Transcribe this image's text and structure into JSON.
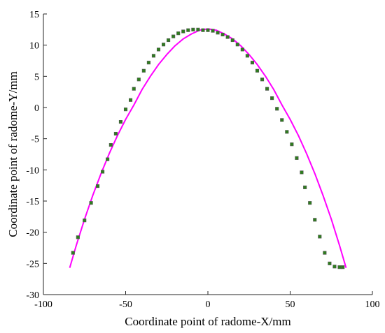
{
  "chart_data": {
    "type": "line",
    "xlabel": "Coordinate point of radome-X/mm",
    "ylabel": "Coordinate point of radome-Y/mm",
    "xlim": [
      -100,
      100
    ],
    "ylim": [
      -30,
      15
    ],
    "xticks": [
      -100,
      -50,
      0,
      50,
      100
    ],
    "yticks": [
      15,
      10,
      5,
      0,
      -5,
      -10,
      -15,
      -20,
      -25,
      -30
    ],
    "grid": false,
    "series": [
      {
        "kind": "curve",
        "color": "#ff00ff",
        "x": [
          -84,
          -80,
          -75,
          -70,
          -65,
          -60,
          -55,
          -50,
          -45,
          -40,
          -35,
          -30,
          -25,
          -20,
          -15,
          -10,
          -5,
          0,
          5,
          10,
          15,
          20,
          25,
          30,
          35,
          40,
          45,
          50,
          55,
          60,
          65,
          70,
          75,
          80,
          84
        ],
        "y": [
          -25.7,
          -22.1,
          -17.9,
          -14.1,
          -10.6,
          -7.4,
          -4.5,
          -1.9,
          0.4,
          2.9,
          5.0,
          6.9,
          8.5,
          9.9,
          11.0,
          11.8,
          12.4,
          12.6,
          12.4,
          11.8,
          11.0,
          9.9,
          8.5,
          6.9,
          5.0,
          2.9,
          0.4,
          -1.9,
          -4.5,
          -7.4,
          -10.6,
          -14.1,
          -17.9,
          -22.1,
          -25.7
        ]
      },
      {
        "kind": "markers",
        "color": "#2e7d1e",
        "edge_color": "#555555",
        "x": [
          -82,
          -79,
          -75,
          -71,
          -67,
          -64,
          -61,
          -59,
          -56,
          -53,
          -50,
          -47,
          -45,
          -42,
          -39,
          -36,
          -33,
          -30,
          -27,
          -24,
          -21,
          -18,
          -15,
          -12,
          -9,
          -6,
          -3,
          0,
          3,
          6,
          9,
          12,
          15,
          18,
          21,
          24,
          27,
          30,
          33,
          36,
          39,
          42,
          45,
          48,
          51,
          54,
          57,
          59,
          62,
          65,
          68,
          71,
          74,
          77,
          80,
          82
        ],
        "y": [
          -23.3,
          -20.8,
          -18.1,
          -15.3,
          -12.6,
          -10.3,
          -8.3,
          -6.0,
          -4.2,
          -2.3,
          -0.3,
          1.2,
          3.0,
          4.5,
          5.9,
          7.2,
          8.3,
          9.3,
          10.1,
          10.8,
          11.4,
          11.9,
          12.2,
          12.4,
          12.5,
          12.5,
          12.4,
          12.4,
          12.3,
          12.0,
          11.7,
          11.3,
          10.8,
          10.1,
          9.3,
          8.3,
          7.2,
          5.9,
          4.5,
          3.0,
          1.5,
          -0.2,
          -2.0,
          -3.9,
          -5.9,
          -8.1,
          -10.4,
          -12.8,
          -15.3,
          -18.0,
          -20.7,
          -23.3,
          -25.0,
          -25.5,
          -25.6,
          -25.6
        ]
      }
    ]
  }
}
